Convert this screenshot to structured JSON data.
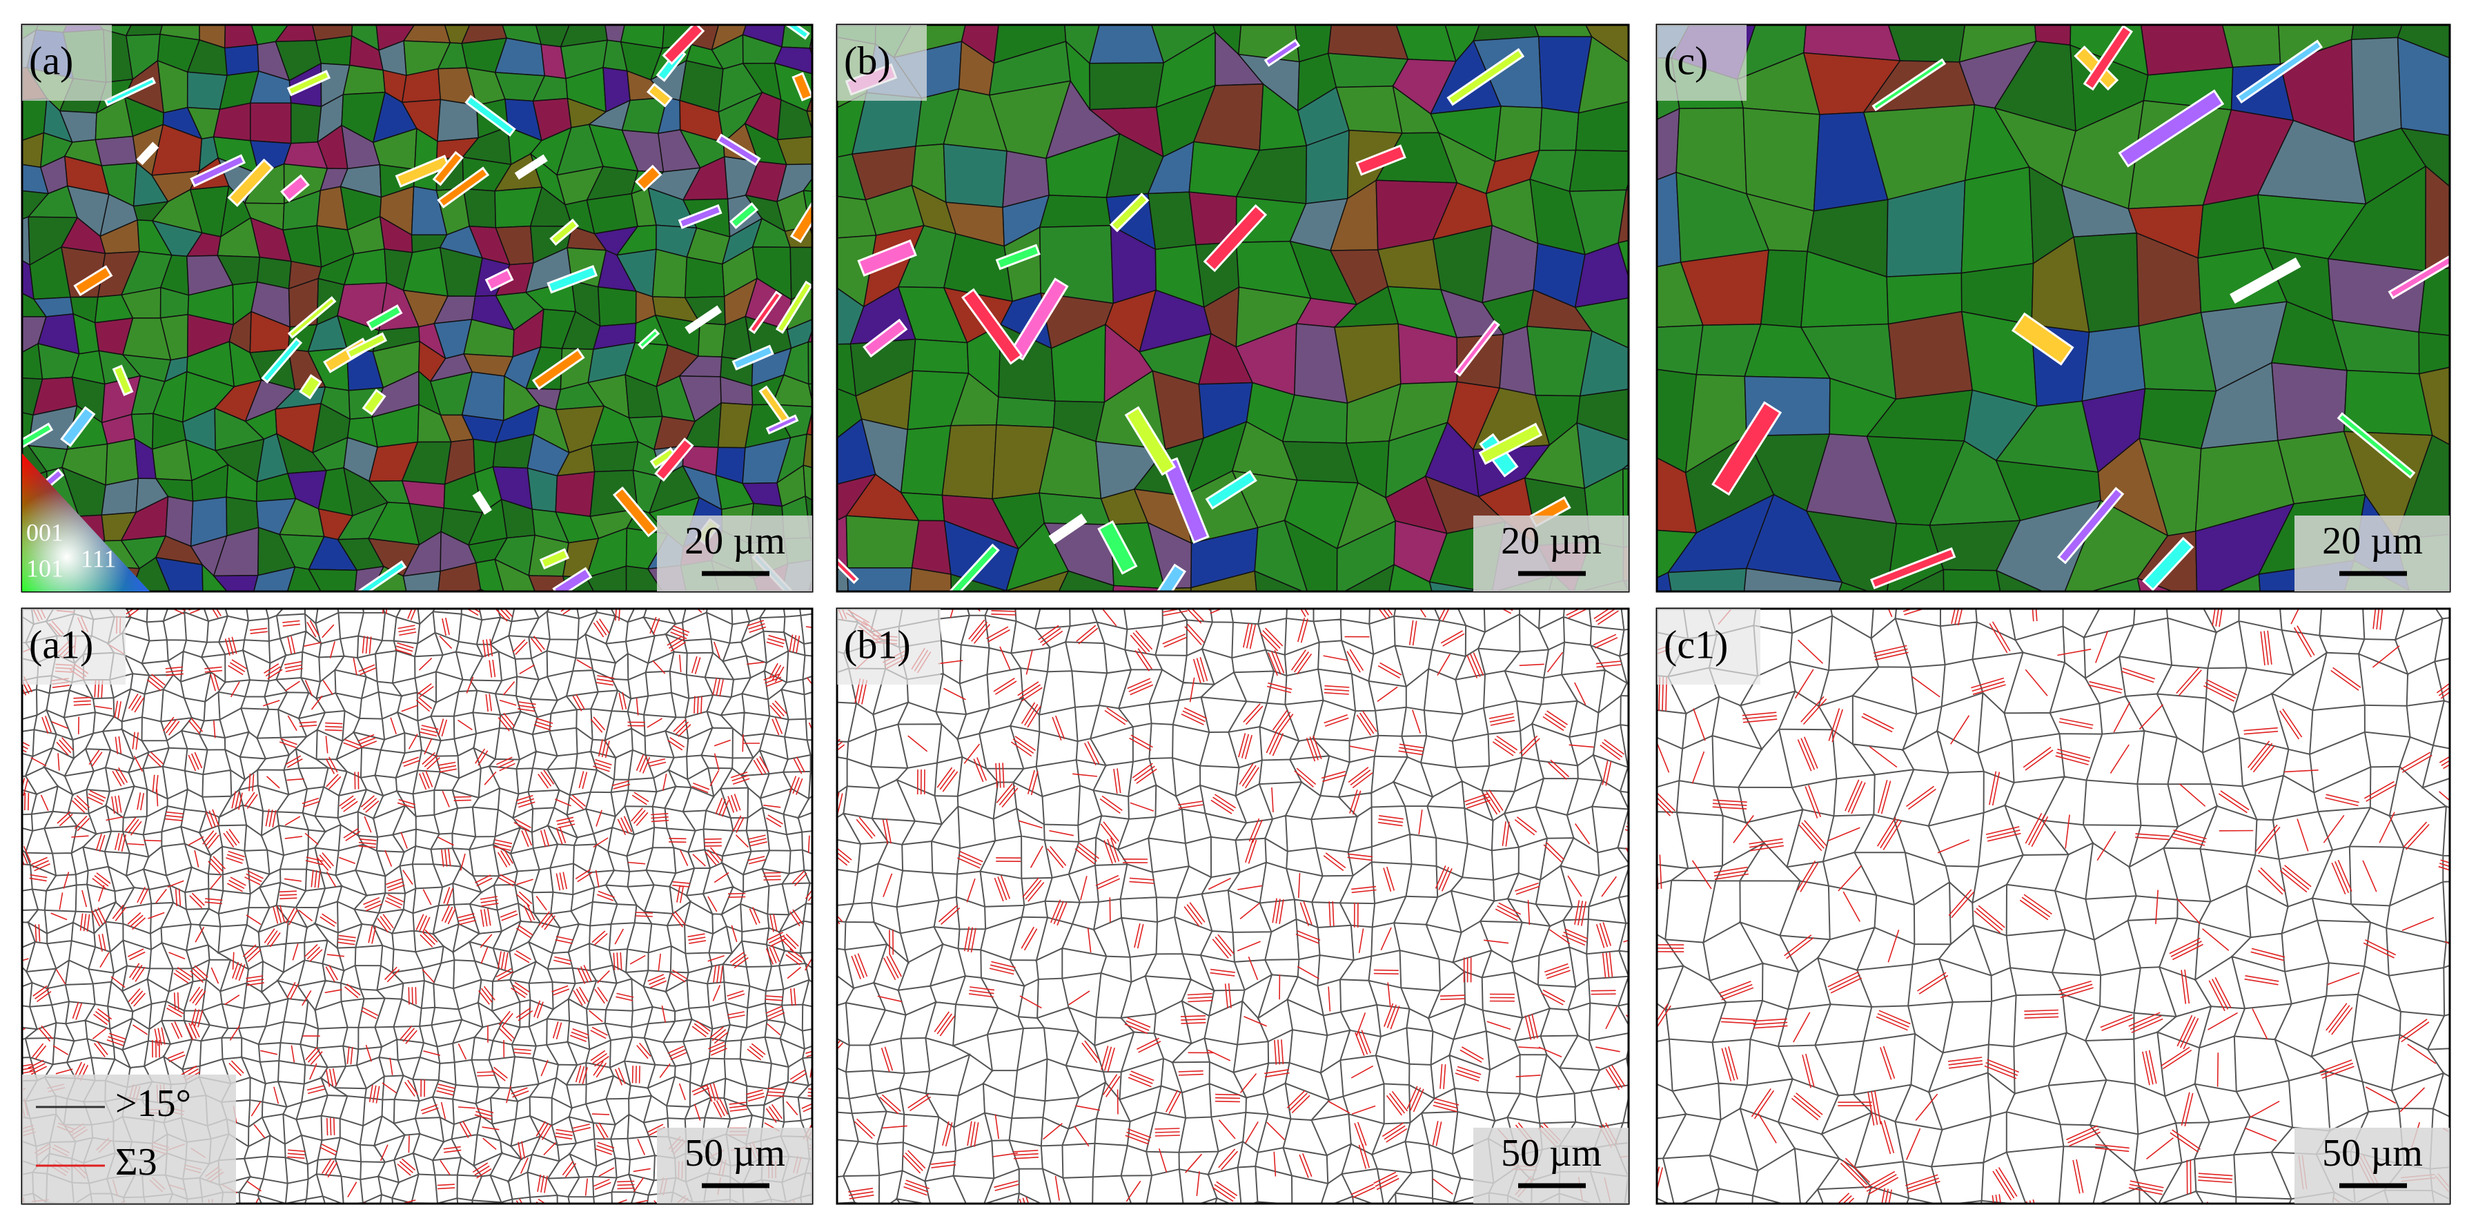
{
  "panels": [
    {
      "label": "(a)",
      "scale_bar": "20 µm"
    },
    {
      "label": "(b)",
      "scale_bar": "20 µm"
    },
    {
      "label": "(c)",
      "scale_bar": "20 µm"
    },
    {
      "label": "(a1)",
      "scale_bar": "50 µm"
    },
    {
      "label": "(b1)",
      "scale_bar": "50 µm"
    },
    {
      "label": "(c1)",
      "scale_bar": "50 µm"
    }
  ],
  "ipf_key": {
    "labels": [
      "001",
      "101",
      "111"
    ]
  },
  "legend": {
    "items": [
      {
        "label": ">15°",
        "color": "#333333"
      },
      {
        "label": "Σ3",
        "color": "#e02020"
      }
    ]
  }
}
